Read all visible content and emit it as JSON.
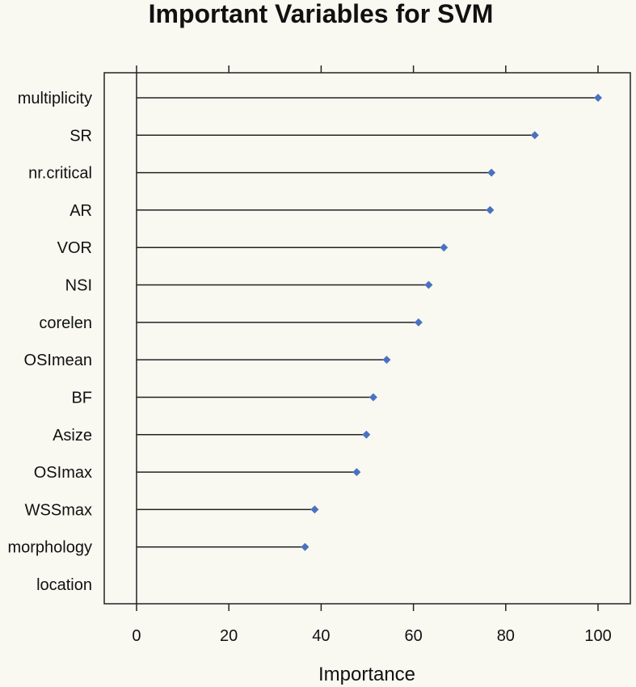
{
  "chart_data": {
    "type": "dot",
    "title": "Important Variables for SVM",
    "xlabel": "Importance",
    "ylabel": "",
    "xlim": [
      -7,
      107
    ],
    "xticks": [
      0,
      20,
      40,
      60,
      80,
      100
    ],
    "categories": [
      "multiplicity",
      "SR",
      "nr.critical",
      "AR",
      "VOR",
      "NSI",
      "corelen",
      "OSImean",
      "BF",
      "Asize",
      "OSImax",
      "WSSmax",
      "morphology",
      "location"
    ],
    "values": [
      100,
      86.3,
      76.9,
      76.6,
      66.6,
      63.3,
      61.1,
      54.2,
      51.3,
      49.8,
      47.7,
      38.6,
      36.5,
      0
    ],
    "marker_color": "#4a72c0",
    "grid": false,
    "legend": "none"
  }
}
